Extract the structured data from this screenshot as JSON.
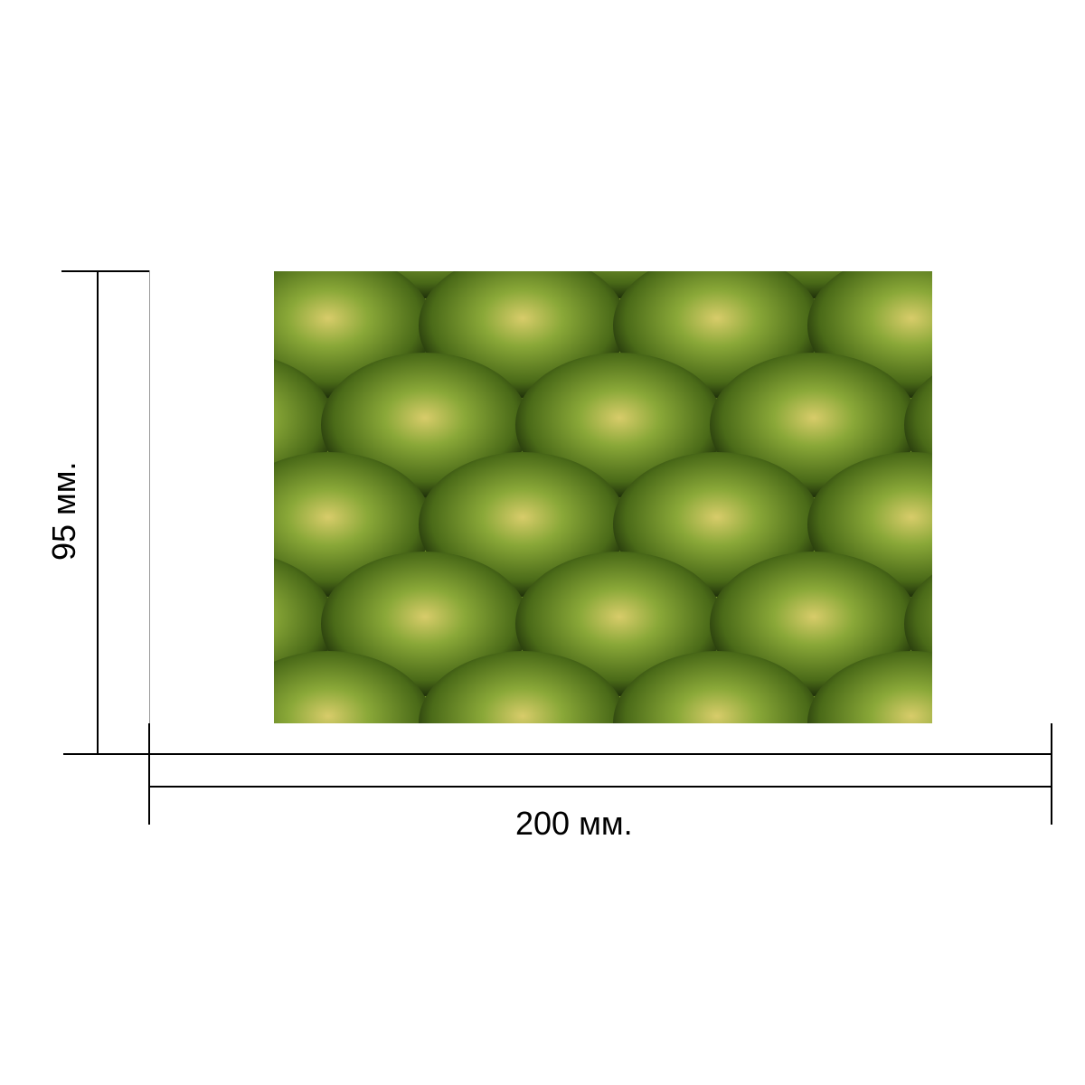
{
  "dimensions": {
    "width_label": "200 мм.",
    "height_label": "95 мм."
  },
  "image": {
    "subject": "pineapple-skin-texture"
  }
}
